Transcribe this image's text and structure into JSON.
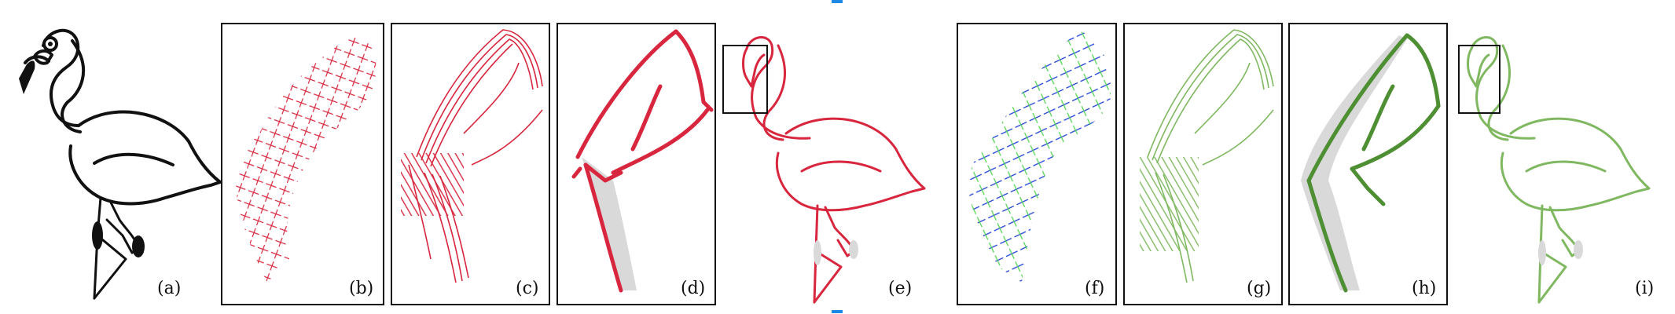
{
  "figure": {
    "panels": [
      {
        "label": "(a)",
        "subject": "flamingo line drawing (input)",
        "color": "#111111"
      },
      {
        "label": "(b)",
        "subject": "red cross-field samples",
        "color": "#d7263d"
      },
      {
        "label": "(c)",
        "subject": "red traced stroke bundles",
        "color": "#d7263d"
      },
      {
        "label": "(d)",
        "subject": "red extracted curves",
        "color": "#d7263d"
      },
      {
        "label": "(e)",
        "subject": "red final vectorization",
        "color": "#d7263d"
      },
      {
        "label": "(f)",
        "subject": "blue and green cross-field",
        "color": "#1a3fd6"
      },
      {
        "label": "(g)",
        "subject": "green traced stroke bundles",
        "color": "#6fa84a"
      },
      {
        "label": "(h)",
        "subject": "green extracted curves",
        "color": "#4f8f33"
      },
      {
        "label": "(i)",
        "subject": "green final vectorization",
        "color": "#7fb860"
      }
    ],
    "colors": {
      "red": "#d7263d",
      "blue": "#1a3fd6",
      "green": "#55d455",
      "green_dark": "#4f8f33",
      "green_light": "#7fb860",
      "shadow": "#d9d9d9"
    }
  }
}
